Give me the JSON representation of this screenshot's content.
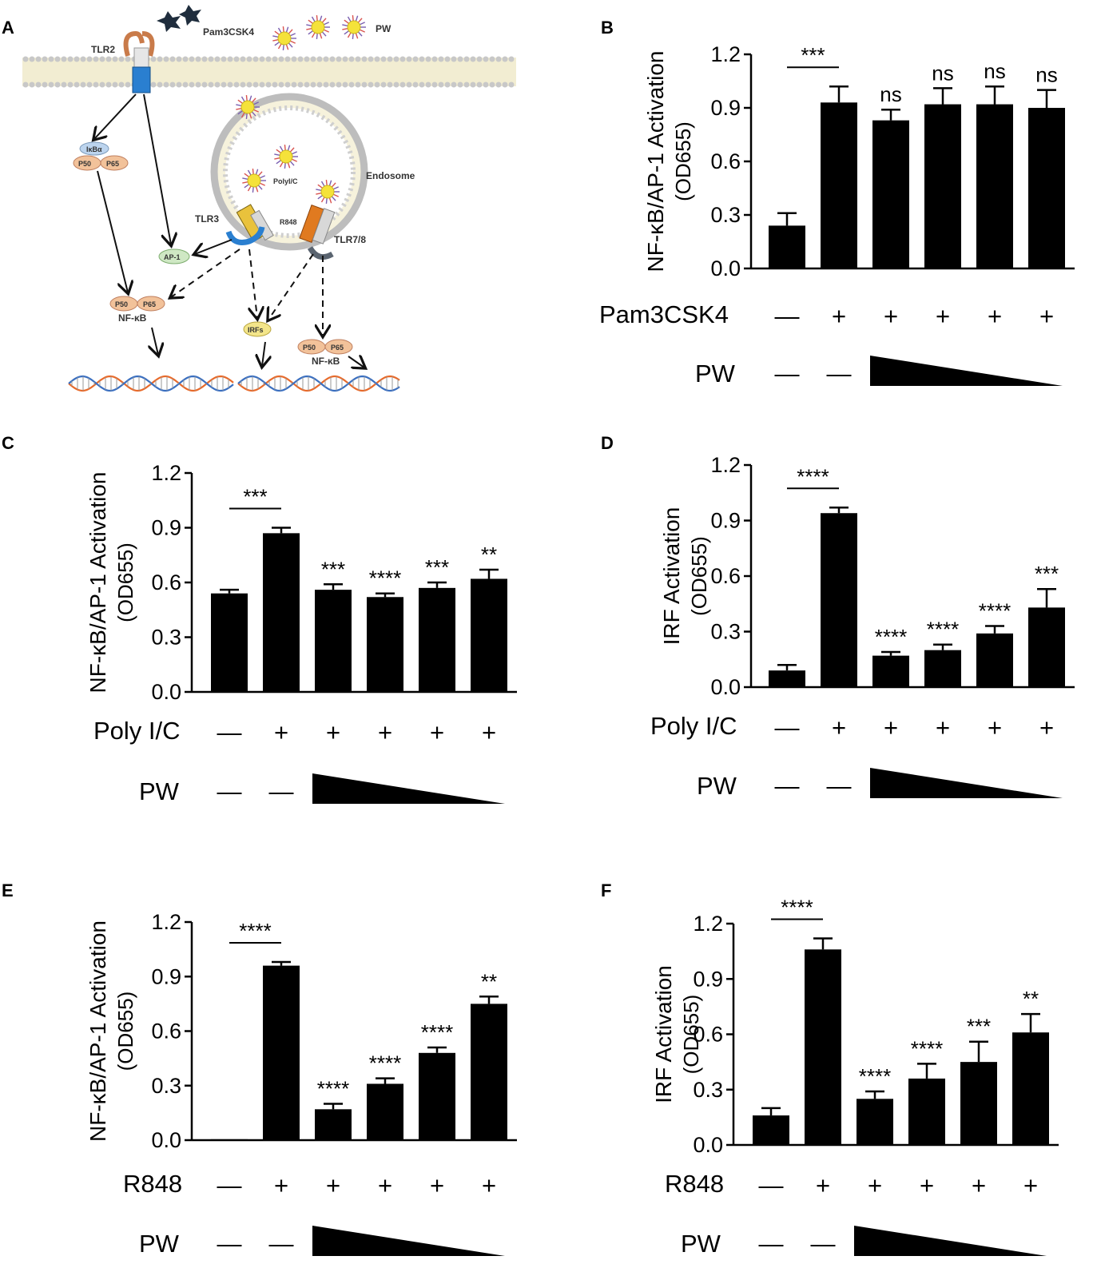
{
  "panel_labels": [
    "A",
    "B",
    "C",
    "D",
    "E",
    "F"
  ],
  "diagram": {
    "labels": {
      "tlr2": "TLR2",
      "pam3csk4": "Pam3CSK4",
      "pw": "PW",
      "endosome": "Endosome",
      "polyic": "PolyI/C",
      "r848": "R848",
      "tlr3": "TLR3",
      "tlr78": "TLR7/8",
      "ikba": "IκBα",
      "p50": "P50",
      "p65": "P65",
      "ap1": "AP-1",
      "nfkb": "NF-κB",
      "irfs": "IRFs"
    }
  },
  "chart_data": [
    {
      "panel": "B",
      "type": "bar",
      "ylabel_main": "NF-κB/AP-1 Activation",
      "ylabel_sub": "(OD655)",
      "ylim": [
        0,
        1.2
      ],
      "yticks": [
        "0.0",
        "0.3",
        "0.6",
        "0.9",
        "1.2"
      ],
      "values": [
        0.24,
        0.93,
        0.83,
        0.92,
        0.92,
        0.9
      ],
      "errors": [
        0.07,
        0.09,
        0.06,
        0.09,
        0.1,
        0.1
      ],
      "significance": [
        "",
        "",
        "ns",
        "ns",
        "ns",
        "ns"
      ],
      "bracket_label": "***",
      "stimulus_label": "Pam3CSK4",
      "stimulus_signs": [
        "—",
        "+",
        "+",
        "+",
        "+",
        "+"
      ],
      "pw_label": "PW",
      "pw_signs": [
        "—",
        "—"
      ]
    },
    {
      "panel": "C",
      "type": "bar",
      "ylabel_main": "NF-κB/AP-1 Activation",
      "ylabel_sub": "(OD655)",
      "ylim": [
        0,
        1.2
      ],
      "yticks": [
        "0.0",
        "0.3",
        "0.6",
        "0.9",
        "1.2"
      ],
      "values": [
        0.54,
        0.87,
        0.56,
        0.52,
        0.57,
        0.62
      ],
      "errors": [
        0.02,
        0.03,
        0.03,
        0.02,
        0.03,
        0.05
      ],
      "significance": [
        "",
        "",
        "***",
        "****",
        "***",
        "**"
      ],
      "bracket_label": "***",
      "stimulus_label": "Poly I/C",
      "stimulus_signs": [
        "—",
        "+",
        "+",
        "+",
        "+",
        "+"
      ],
      "pw_label": "PW",
      "pw_signs": [
        "—",
        "—"
      ]
    },
    {
      "panel": "D",
      "type": "bar",
      "ylabel_main": "IRF Activation",
      "ylabel_sub": "(OD655)",
      "ylim": [
        0,
        1.2
      ],
      "yticks": [
        "0.0",
        "0.3",
        "0.6",
        "0.9",
        "1.2"
      ],
      "values": [
        0.09,
        0.94,
        0.17,
        0.2,
        0.29,
        0.43
      ],
      "errors": [
        0.03,
        0.03,
        0.02,
        0.03,
        0.04,
        0.1
      ],
      "significance": [
        "",
        "",
        "****",
        "****",
        "****",
        "***"
      ],
      "bracket_label": "****",
      "stimulus_label": "Poly I/C",
      "stimulus_signs": [
        "—",
        "+",
        "+",
        "+",
        "+",
        "+"
      ],
      "pw_label": "PW",
      "pw_signs": [
        "—",
        "—"
      ]
    },
    {
      "panel": "E",
      "type": "bar",
      "ylabel_main": "NF-κB/AP-1 Activation",
      "ylabel_sub": "(OD655)",
      "ylim": [
        0,
        1.2
      ],
      "yticks": [
        "0.0",
        "0.3",
        "0.6",
        "0.9",
        "1.2"
      ],
      "values": [
        0.005,
        0.96,
        0.17,
        0.31,
        0.48,
        0.75
      ],
      "errors": [
        0.0,
        0.02,
        0.03,
        0.03,
        0.03,
        0.04
      ],
      "significance": [
        "",
        "",
        "****",
        "****",
        "****",
        "**"
      ],
      "bracket_label": "****",
      "stimulus_label": "R848",
      "stimulus_signs": [
        "—",
        "+",
        "+",
        "+",
        "+",
        "+"
      ],
      "pw_label": "PW",
      "pw_signs": [
        "—",
        "—"
      ]
    },
    {
      "panel": "F",
      "type": "bar",
      "ylabel_main": "IRF Activation",
      "ylabel_sub": "(OD655)",
      "ylim": [
        0,
        1.2
      ],
      "yticks": [
        "0.0",
        "0.3",
        "0.6",
        "0.9",
        "1.2"
      ],
      "values": [
        0.16,
        1.06,
        0.25,
        0.36,
        0.45,
        0.61
      ],
      "errors": [
        0.04,
        0.06,
        0.04,
        0.08,
        0.11,
        0.1
      ],
      "significance": [
        "",
        "",
        "****",
        "****",
        "***",
        "**"
      ],
      "bracket_label": "****",
      "stimulus_label": "R848",
      "stimulus_signs": [
        "—",
        "+",
        "+",
        "+",
        "+",
        "+"
      ],
      "pw_label": "PW",
      "pw_signs": [
        "—",
        "—"
      ]
    }
  ]
}
